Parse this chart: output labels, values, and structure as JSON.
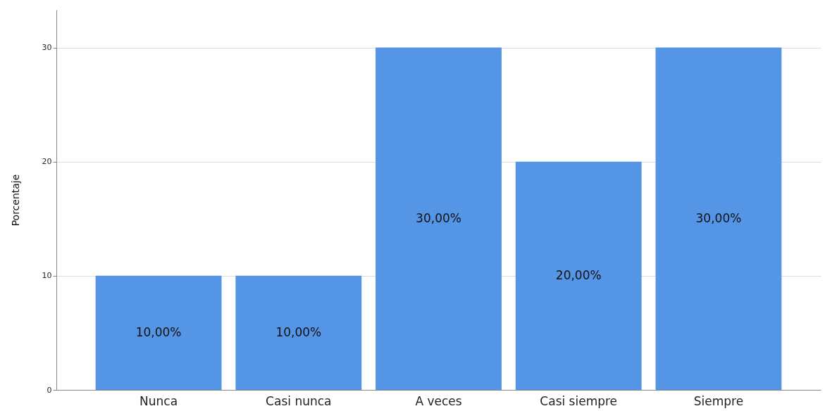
{
  "chart_data": {
    "type": "bar",
    "ylabel": "Porcentaje",
    "categories": [
      "Nunca",
      "Casi nunca",
      "A veces",
      "Casi siempre",
      "Siempre"
    ],
    "values": [
      10,
      10,
      30,
      20,
      30
    ],
    "value_labels": [
      "10,00%",
      "10,00%",
      "30,00%",
      "20,00%",
      "30,00%"
    ],
    "color": "#5595e5",
    "ylim": [
      0,
      33.3
    ],
    "yticks": [
      0,
      10,
      20,
      30
    ],
    "grid": "y"
  }
}
